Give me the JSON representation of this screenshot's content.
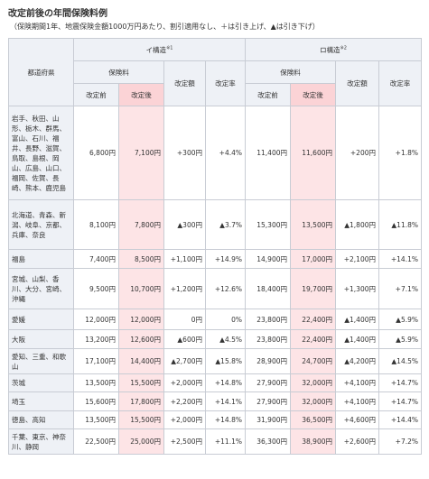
{
  "header": {
    "title": "改定前後の年間保険料例",
    "subtitle": "（保険期間1年、地震保険金額1000万円あたり、割引適用なし、＋は引き上げ、▲は引き下げ）"
  },
  "table": {
    "region_header": "都道府県",
    "groups": [
      {
        "label": "イ構造",
        "note": "※1"
      },
      {
        "label": "ロ構造",
        "note": "※2"
      }
    ],
    "sub_headers": [
      "保険料",
      "改定額",
      "改定率"
    ],
    "premium_headers": [
      "改定前",
      "改定後"
    ],
    "rows": [
      [
        "岩手、秋田、山形、栃木、群馬、富山、石川、福井、長野、滋賀、鳥取、島根、岡山、広島、山口、福岡、佐賀、長崎、熊本、鹿児島",
        "6,800円",
        "7,100円",
        "+300円",
        "+4.4%",
        "11,400円",
        "11,600円",
        "+200円",
        "+1.8%"
      ],
      [
        "北海道、青森、新潟、岐阜、京都、兵庫、奈良",
        "8,100円",
        "7,800円",
        "▲300円",
        "▲3.7%",
        "15,300円",
        "13,500円",
        "▲1,800円",
        "▲11.8%"
      ],
      [
        "福島",
        "7,400円",
        "8,500円",
        "+1,100円",
        "+14.9%",
        "14,900円",
        "17,000円",
        "+2,100円",
        "+14.1%"
      ],
      [
        "宮城、山梨、香川、大分、宮崎、沖縄",
        "9,500円",
        "10,700円",
        "+1,200円",
        "+12.6%",
        "18,400円",
        "19,700円",
        "+1,300円",
        "+7.1%"
      ],
      [
        "愛媛",
        "12,000円",
        "12,000円",
        "0円",
        "0%",
        "23,800円",
        "22,400円",
        "▲1,400円",
        "▲5.9%"
      ],
      [
        "大阪",
        "13,200円",
        "12,600円",
        "▲600円",
        "▲4.5%",
        "23,800円",
        "22,400円",
        "▲1,400円",
        "▲5.9%"
      ],
      [
        "愛知、三重、和歌山",
        "17,100円",
        "14,400円",
        "▲2,700円",
        "▲15.8%",
        "28,900円",
        "24,700円",
        "▲4,200円",
        "▲14.5%"
      ],
      [
        "茨城",
        "13,500円",
        "15,500円",
        "+2,000円",
        "+14.8%",
        "27,900円",
        "32,000円",
        "+4,100円",
        "+14.7%"
      ],
      [
        "埼玉",
        "15,600円",
        "17,800円",
        "+2,200円",
        "+14.1%",
        "27,900円",
        "32,000円",
        "+4,100円",
        "+14.7%"
      ],
      [
        "徳島、高知",
        "13,500円",
        "15,500円",
        "+2,000円",
        "+14.8%",
        "31,900円",
        "36,500円",
        "+4,600円",
        "+14.4%"
      ],
      [
        "千葉、東京、神奈川、静岡",
        "22,500円",
        "25,000円",
        "+2,500円",
        "+11.1%",
        "36,300円",
        "38,900円",
        "+2,600円",
        "+7.2%"
      ]
    ]
  }
}
